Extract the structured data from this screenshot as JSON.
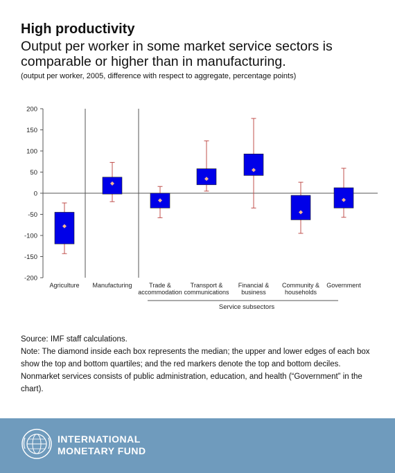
{
  "header": {
    "title": "High productivity",
    "subtitle": "Output per worker in some market service sectors is comparable or higher than in manufacturing.",
    "units_note": "(output per worker, 2005, difference with respect to aggregate, percentage points)"
  },
  "chart_data": {
    "type": "box",
    "categories": [
      "Agriculture",
      "Manufacturing",
      "Trade & accommodation",
      "Transport & communications",
      "Financial & business",
      "Community & households",
      "Government"
    ],
    "category_label_lines": [
      [
        "Agriculture"
      ],
      [
        "Manufacturing"
      ],
      [
        "Trade &",
        "accommodation"
      ],
      [
        "Transport &",
        "communications"
      ],
      [
        "Financial &",
        "business"
      ],
      [
        "Community &",
        "households"
      ],
      [
        "Government"
      ]
    ],
    "group_label": "Service subsectors",
    "series": [
      {
        "decile_low": -143,
        "q1": -120,
        "median": -78,
        "q3": -45,
        "decile_high": -23
      },
      {
        "decile_low": -20,
        "q1": -2,
        "median": 23,
        "q3": 38,
        "decile_high": 73
      },
      {
        "decile_low": -58,
        "q1": -35,
        "median": -17,
        "q3": 0,
        "decile_high": 16
      },
      {
        "decile_low": 5,
        "q1": 20,
        "median": 34,
        "q3": 58,
        "decile_high": 124
      },
      {
        "decile_low": -35,
        "q1": 42,
        "median": 55,
        "q3": 93,
        "decile_high": 177
      },
      {
        "decile_low": -95,
        "q1": -63,
        "median": -45,
        "q3": -5,
        "decile_high": 26
      },
      {
        "decile_low": -57,
        "q1": -35,
        "median": -16,
        "q3": 13,
        "decile_high": 59
      }
    ],
    "ylim": [
      -200,
      200
    ],
    "yticks": [
      200,
      150,
      100,
      50,
      0,
      -50,
      -100,
      -150,
      -200
    ],
    "grid": false,
    "colors": {
      "box": "#0000e8",
      "median_marker": "#f5b78f",
      "whisker": "#c0504d",
      "axis": "#555555"
    }
  },
  "footnotes": {
    "source": "Source: IMF staff calculations.",
    "note": "Note: The diamond inside each box represents the median; the upper and lower edges of each box show the top and bottom quartiles; and the red markers denote the top and bottom deciles. Nonmarket services consists of public administration, education, and health (“Government” in the chart)."
  },
  "footer": {
    "line1": "INTERNATIONAL",
    "line2": "MONETARY FUND",
    "logo_icon": "imf-seal-icon",
    "background": "#6f9bbd"
  }
}
